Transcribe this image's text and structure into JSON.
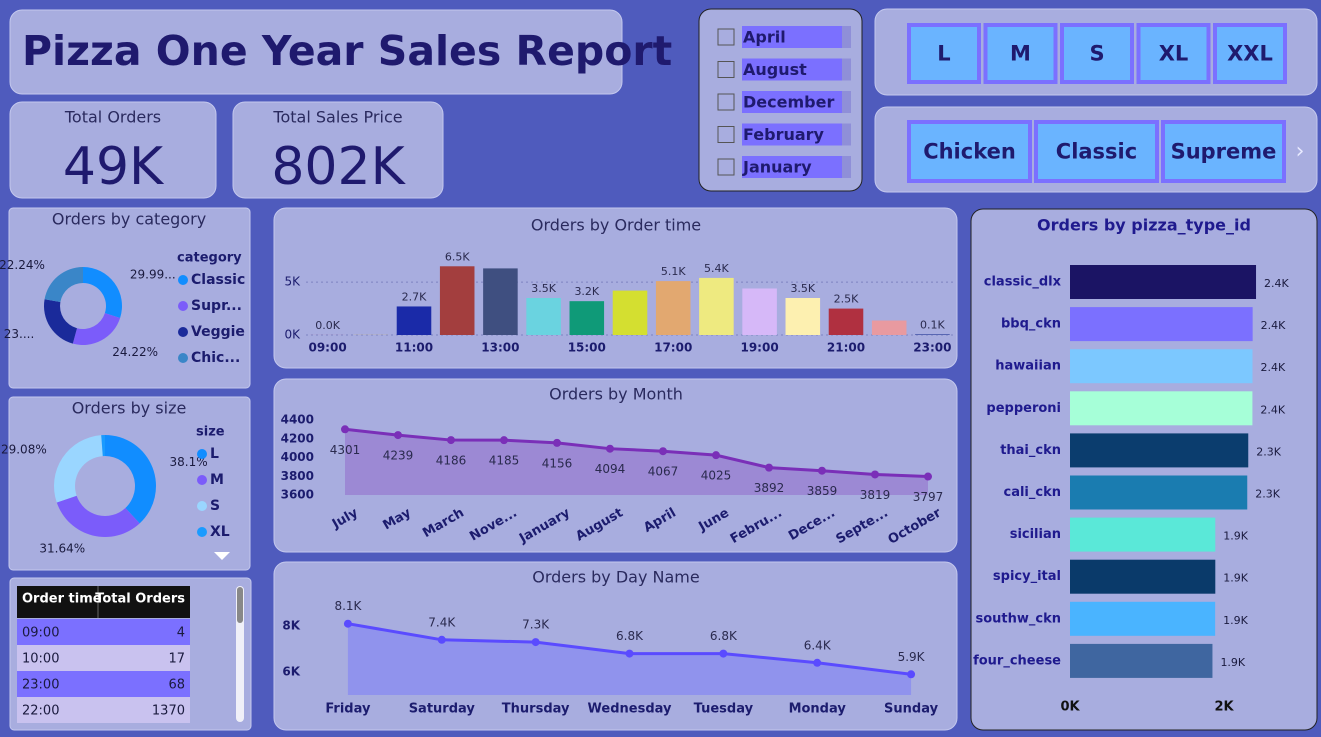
{
  "title": "Pizza One Year Sales Report",
  "cards": [
    {
      "label": "Total Orders",
      "value": "49K"
    },
    {
      "label": "Total Sales Price",
      "value": "802K"
    }
  ],
  "month_slicer": [
    "April",
    "August",
    "December",
    "February",
    "January"
  ],
  "size_slicer": [
    "L",
    "M",
    "S",
    "XL",
    "XXL"
  ],
  "category_slicer": [
    "Chicken",
    "Classic",
    "Supreme"
  ],
  "table": {
    "columns": [
      "Order time",
      "Total Orders"
    ],
    "rows": [
      [
        "09:00",
        4
      ],
      [
        "10:00",
        17
      ],
      [
        "23:00",
        68
      ],
      [
        "22:00",
        1370
      ]
    ]
  },
  "chart_data": [
    {
      "type": "donut",
      "title": "Orders by category",
      "legend_title": "category",
      "categories": [
        "Classic",
        "Supr...",
        "Veggie",
        "Chic..."
      ],
      "values": [
        29.99,
        24.22,
        23.55,
        22.24
      ],
      "value_labels": [
        "29.99...",
        "24.22%",
        "23....",
        "22.24%"
      ],
      "colors": [
        "#118dff",
        "#7b5cfa",
        "#1a2a9a",
        "#3a86c8"
      ]
    },
    {
      "type": "donut",
      "title": "Orders by size",
      "legend_title": "size",
      "categories": [
        "L",
        "M",
        "S",
        "XL"
      ],
      "values": [
        38.1,
        31.64,
        29.08,
        1.18
      ],
      "value_labels": [
        "38.1%",
        "31.64%",
        "29.08%",
        null
      ],
      "colors": [
        "#118dff",
        "#7b5cfa",
        "#9ad6ff",
        "#1a9bff"
      ]
    },
    {
      "type": "bar",
      "title": "Orders by Order time",
      "categories": [
        "09:00",
        null,
        "11:00",
        null,
        "13:00",
        null,
        "15:00",
        null,
        "17:00",
        null,
        "19:00",
        null,
        "21:00",
        null,
        "23:00"
      ],
      "values": [
        4,
        17,
        2700,
        6500,
        6300,
        3500,
        3200,
        4200,
        5100,
        5400,
        4400,
        3500,
        2500,
        1370,
        68
      ],
      "value_labels": [
        "0.0K",
        null,
        "2.7K",
        "6.5K",
        null,
        "3.5K",
        "3.2K",
        null,
        "5.1K",
        "5.4K",
        null,
        "3.5K",
        "2.5K",
        null,
        "0.1K"
      ],
      "colors": [
        "#e05a8a",
        "#d4c080",
        "#1a2aa8",
        "#a33e3e",
        "#3f4f80",
        "#6ad3e0",
        "#0f9a78",
        "#d4df30",
        "#e2a870",
        "#eeea80",
        "#d6b8f8",
        "#fdf0b0",
        "#b03040",
        "#e89aa0",
        "#3a4aa0"
      ],
      "ylim": [
        0,
        7000
      ],
      "yticks": [
        {
          "value": 0,
          "label": "0K"
        },
        {
          "value": 5000,
          "label": "5K"
        }
      ],
      "grid": true
    },
    {
      "type": "line",
      "title": "Orders by Month",
      "categories": [
        "July",
        "May",
        "March",
        "Nove...",
        "January",
        "August",
        "April",
        "June",
        "Febru...",
        "Dece...",
        "Septe...",
        "October"
      ],
      "values": [
        4301,
        4239,
        4186,
        4185,
        4156,
        4094,
        4067,
        4025,
        3892,
        3859,
        3819,
        3797
      ],
      "color": "#7a2fb8",
      "fill_color": "#9a82d2",
      "ylim": [
        3600,
        4400
      ],
      "yticks": [
        3600,
        3800,
        4000,
        4200,
        4400
      ],
      "grid": false
    },
    {
      "type": "line",
      "title": "Orders by Day Name",
      "categories": [
        "Friday",
        "Saturday",
        "Thursday",
        "Wednesday",
        "Tuesday",
        "Monday",
        "Sunday"
      ],
      "values": [
        8100,
        7400,
        7300,
        6800,
        6800,
        6400,
        5900
      ],
      "value_labels": [
        "8.1K",
        "7.4K",
        "7.3K",
        "6.8K",
        "6.8K",
        "6.4K",
        "5.9K"
      ],
      "color": "#5a4bff",
      "fill_color": "#8c8ef0",
      "ylim": [
        5000,
        9000
      ],
      "yticks": [
        {
          "value": 6000,
          "label": "6K"
        },
        {
          "value": 8000,
          "label": "8K"
        }
      ],
      "grid": false
    },
    {
      "type": "bar",
      "orientation": "horizontal",
      "title": "Orders by pizza_type_id",
      "categories": [
        "classic_dlx",
        "bbq_ckn",
        "hawaiian",
        "pepperoni",
        "thai_ckn",
        "cali_ckn",
        "sicilian",
        "spicy_ital",
        "southw_ckn",
        "four_cheese"
      ],
      "values": [
        2416,
        2372,
        2370,
        2369,
        2315,
        2302,
        1887,
        1887,
        1885,
        1850
      ],
      "value_labels": [
        "2.4K",
        "2.4K",
        "2.4K",
        "2.4K",
        "2.3K",
        "2.3K",
        "1.9K",
        "1.9K",
        "1.9K",
        "1.9K"
      ],
      "colors": [
        "#1b1464",
        "#7b70ff",
        "#7cc8ff",
        "#a6ffd8",
        "#0b3d6e",
        "#1a7cb0",
        "#5ae8d8",
        "#0a3a6a",
        "#4ab4ff",
        "#3f66a0"
      ],
      "xlim": [
        0,
        2500
      ],
      "xticks": [
        {
          "value": 0,
          "label": "0K"
        },
        {
          "value": 2000,
          "label": "2K"
        }
      ]
    }
  ]
}
